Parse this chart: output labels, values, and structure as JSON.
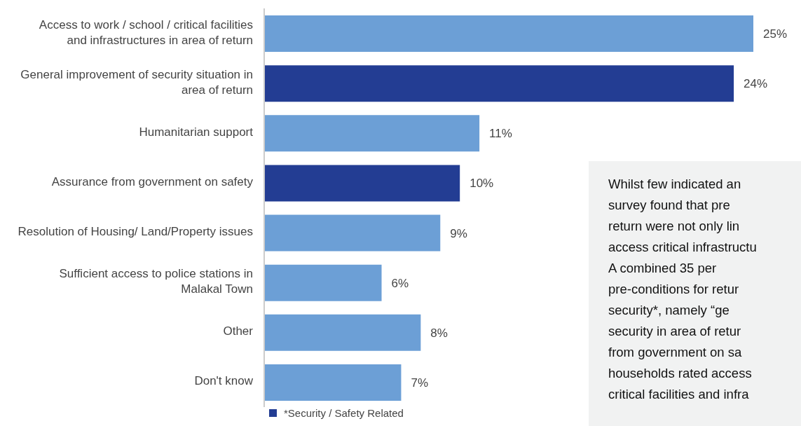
{
  "chart_data": {
    "type": "bar",
    "orientation": "horizontal",
    "stacked": true,
    "tick_labels": "y",
    "categories": [
      "Access to work / school / critical facilities and infrastructures in area of return",
      "General improvement of security situation in area of return",
      "Humanitarian support",
      "Assurance from government on safety",
      "Resolution of Housing/ Land/Property issues",
      "Sufficient access to police stations in Malakal Town",
      "Other",
      "Don't know"
    ],
    "series": [
      {
        "color": "#6c9fd6",
        "values": [
          25,
          null,
          11,
          null,
          9,
          6,
          8,
          7
        ],
        "value_labels": [
          "25%",
          null,
          "11%",
          null,
          "9%",
          "6%",
          "8%",
          "7%"
        ]
      },
      {
        "name": "*Security / Safety Related",
        "color": "#233d93",
        "values": [
          null,
          24,
          null,
          10,
          null,
          null,
          null,
          null
        ],
        "value_labels": [
          null,
          "24%",
          null,
          "10%",
          null,
          null,
          null,
          null
        ]
      }
    ],
    "legend": "bottom",
    "annotations": [
      "Whilst few indicated an\nsurvey found that pre\nreturn were not only lin\naccess critical infrastructu\nA combined 35 per\npre-conditions for retur\nsecurity*, namely “ge\nsecurity in area of retur\nfrom government on sa\nhouseholds rated access\ncritical facilities and infra"
    ]
  }
}
